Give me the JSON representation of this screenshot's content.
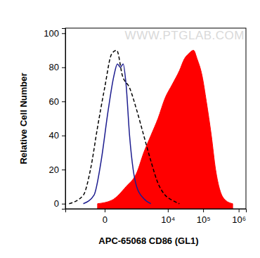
{
  "chart_data": {
    "type": "histogram",
    "x_label": "APC-65068 CD86 (GL1)",
    "y_label": "Relative Cell Number",
    "annotations": [
      "WWW.PTGLAB.COM"
    ],
    "log": "x",
    "xlim": [
      -2000,
      1600000
    ],
    "xticks": [
      0,
      {
        "value": 10000,
        "label": "10⁴"
      },
      {
        "value": 100000,
        "label": "10⁵"
      },
      {
        "value": 1000000,
        "label": "10⁶"
      }
    ],
    "ylim": [
      -3,
      103
    ],
    "yticks": [
      0,
      20,
      40,
      60,
      80,
      100
    ],
    "series": [
      {
        "type": "area",
        "color": "#ff0000",
        "line_style": "solid",
        "x": [
          -99,
          99,
          509,
          1179,
          1967,
          3222,
          5206,
          8350,
          13400,
          21300,
          29500,
          38900,
          53600,
          67500,
          93500,
          123000,
          170000,
          224000,
          296000,
          427000,
          677000
        ],
        "values": [
          0,
          2,
          10,
          18,
          30,
          40,
          50,
          62,
          70,
          78,
          85,
          88,
          90,
          85,
          75,
          60,
          40,
          20,
          8,
          2,
          0
        ]
      },
      {
        "type": "line",
        "color": "#1c1c8f",
        "line_style": "solid",
        "x": [
          -509,
          -169,
          -44,
          44,
          139,
          219,
          299,
          393,
          509,
          682,
          907,
          1179,
          1967,
          3222
        ],
        "values": [
          0,
          5,
          25,
          55,
          75,
          82,
          80,
          82,
          70,
          40,
          20,
          10,
          3,
          0
        ]
      },
      {
        "type": "line",
        "color": "#000000",
        "line_style": "dashed",
        "x": [
          -1530,
          -509,
          -257,
          -99,
          0,
          99,
          201,
          368,
          682,
          1179,
          1967,
          3222,
          5206,
          8350,
          13400,
          21300
        ],
        "values": [
          0,
          5,
          20,
          45,
          68,
          88,
          90,
          75,
          68,
          55,
          40,
          25,
          12,
          5,
          2,
          0
        ]
      }
    ]
  }
}
